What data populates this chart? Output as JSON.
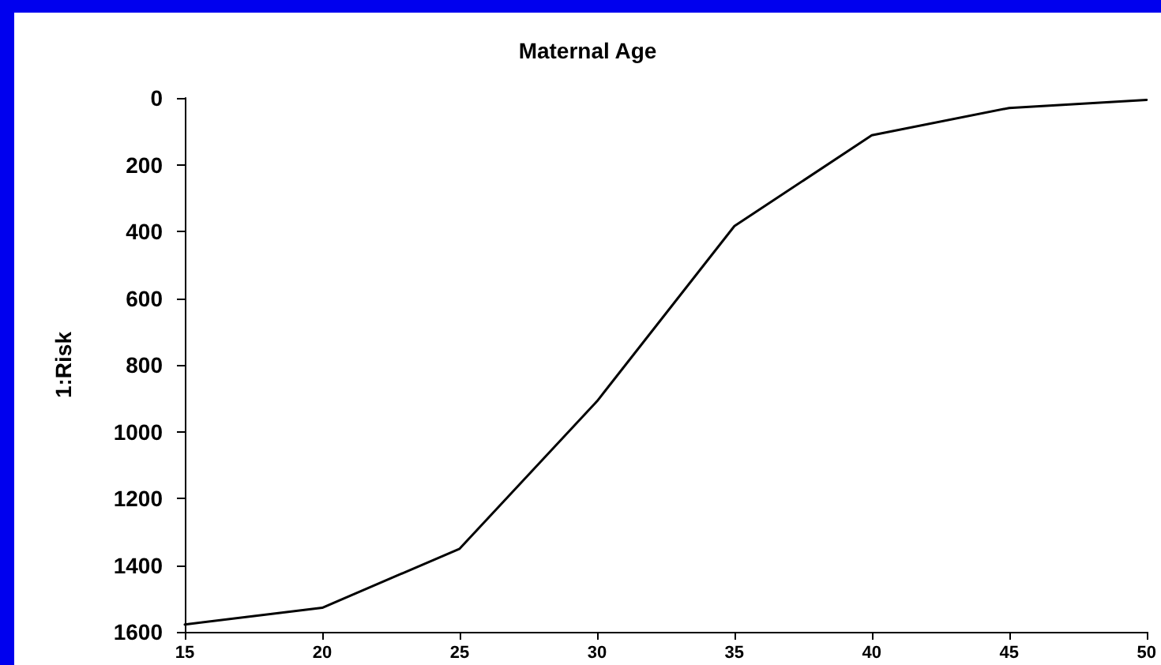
{
  "chart_data": {
    "type": "line",
    "title": "Maternal Age",
    "ylabel": "1:Risk",
    "x": [
      15,
      20,
      25,
      30,
      35,
      40,
      45,
      50
    ],
    "series": [
      {
        "color": "#000000",
        "values": [
          1578,
          1528,
          1351,
          909,
          384,
          112,
          30,
          6
        ]
      }
    ],
    "xlim": [
      15,
      50
    ],
    "xticks": [
      15,
      20,
      25,
      30,
      35,
      40,
      45,
      50
    ],
    "ylim": [
      1600,
      0
    ],
    "yticks": [
      0,
      200,
      400,
      600,
      800,
      1000,
      1200,
      1400,
      1600
    ],
    "grid": false,
    "marker": "none",
    "line_style": "solid"
  }
}
